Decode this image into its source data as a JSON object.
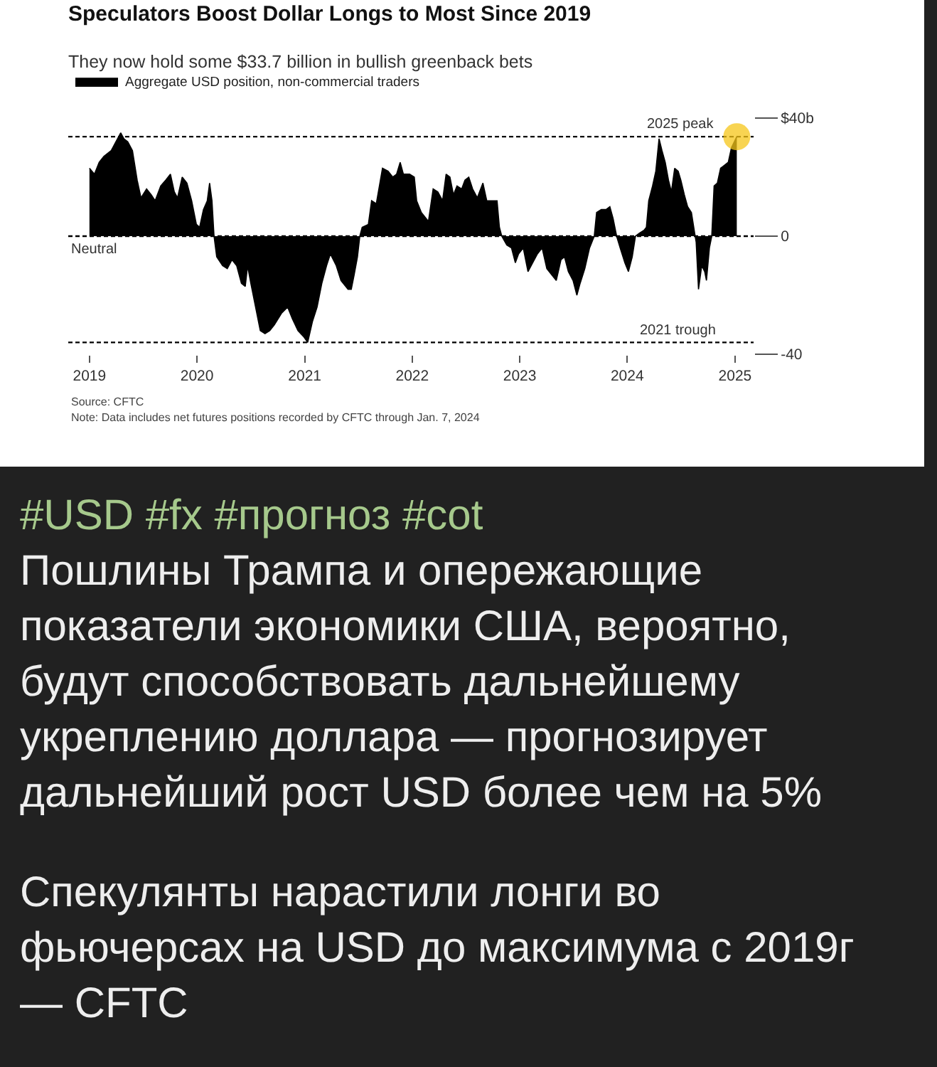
{
  "chart_data": {
    "type": "area",
    "title": "Speculators Boost Dollar Longs to Most Since 2019",
    "subtitle": "They now hold some $33.7 billion in bullish greenback bets",
    "series": [
      {
        "name": "Aggregate USD position, non-commercial traders",
        "color": "#000000",
        "x": [
          "2019-01-01",
          "2019-01-18",
          "2019-02-03",
          "2019-02-19",
          "2019-03-16",
          "2019-04-01",
          "2019-04-17",
          "2019-04-28",
          "2019-05-11",
          "2019-05-27",
          "2019-06-12",
          "2019-06-25",
          "2019-07-14",
          "2019-07-30",
          "2019-08-12",
          "2019-08-31",
          "2019-09-17",
          "2019-10-03",
          "2019-10-16",
          "2019-10-27",
          "2019-11-12",
          "2019-11-28",
          "2019-12-14",
          "2019-12-30",
          "2020-01-10",
          "2020-01-23",
          "2020-02-05",
          "2020-02-13",
          "2020-02-21",
          "2020-02-28",
          "2020-03-08",
          "2020-03-28",
          "2020-04-13",
          "2020-04-29",
          "2020-05-15",
          "2020-05-31",
          "2020-06-13",
          "2020-06-21",
          "2020-07-02",
          "2020-07-18",
          "2020-08-03",
          "2020-08-19",
          "2020-09-04",
          "2020-09-20",
          "2020-10-15",
          "2020-11-04",
          "2020-11-20",
          "2020-12-09",
          "2020-12-28",
          "2021-01-11",
          "2021-01-27",
          "2021-02-12",
          "2021-02-28",
          "2021-03-16",
          "2021-03-29",
          "2021-04-18",
          "2021-05-04",
          "2021-05-28",
          "2021-06-08",
          "2021-06-18",
          "2021-06-29",
          "2021-07-07",
          "2021-07-15",
          "2021-08-05",
          "2021-08-16",
          "2021-09-01",
          "2021-09-22",
          "2021-10-11",
          "2021-10-27",
          "2021-11-09",
          "2021-11-21",
          "2021-12-02",
          "2021-12-23",
          "2022-01-08",
          "2022-01-16",
          "2022-02-01",
          "2022-02-25",
          "2022-03-13",
          "2022-03-29",
          "2022-04-14",
          "2022-04-26",
          "2022-05-09",
          "2022-05-21",
          "2022-06-02",
          "2022-06-18",
          "2022-06-29",
          "2022-07-12",
          "2022-07-25",
          "2022-08-10",
          "2022-08-29",
          "2022-09-11",
          "2022-10-03",
          "2022-10-16",
          "2022-10-24",
          "2022-11-01",
          "2022-11-18",
          "2022-12-04",
          "2022-12-17",
          "2022-12-28",
          "2023-01-13",
          "2023-01-29",
          "2023-02-14",
          "2023-03-02",
          "2023-03-18",
          "2023-04-03",
          "2023-04-19",
          "2023-05-05",
          "2023-05-21",
          "2023-06-02",
          "2023-06-15",
          "2023-07-01",
          "2023-07-14",
          "2023-07-25",
          "2023-08-10",
          "2023-08-26",
          "2023-09-11",
          "2023-09-19",
          "2023-10-05",
          "2023-10-21",
          "2023-11-03",
          "2023-11-14",
          "2023-11-26",
          "2023-12-08",
          "2023-12-24",
          "2024-01-05",
          "2024-01-18",
          "2024-01-29",
          "2024-02-11",
          "2024-02-27",
          "2024-03-06",
          "2024-03-14",
          "2024-03-27",
          "2024-04-07",
          "2024-04-18",
          "2024-04-28",
          "2024-05-09",
          "2024-05-20",
          "2024-05-30",
          "2024-06-10",
          "2024-06-22",
          "2024-07-01",
          "2024-07-13",
          "2024-07-24",
          "2024-08-06",
          "2024-08-17",
          "2024-08-22",
          "2024-08-30",
          "2024-09-10",
          "2024-09-20",
          "2024-09-26",
          "2024-10-06",
          "2024-10-14",
          "2024-10-22",
          "2024-11-02",
          "2024-11-13",
          "2024-11-26",
          "2024-12-09",
          "2024-12-20",
          "2025-01-07"
        ],
        "values": [
          23,
          21,
          25,
          27,
          29,
          32,
          35,
          33,
          32,
          29,
          19,
          13,
          16,
          14,
          12,
          17,
          19,
          21,
          15,
          13,
          20,
          18,
          12,
          4,
          3,
          9,
          12,
          18,
          12,
          0,
          -7,
          -10,
          -11,
          -8,
          -10,
          -16,
          -17,
          -10,
          -16,
          -24,
          -32,
          -33,
          -32,
          -30,
          -26,
          -24,
          -28,
          -32,
          -34,
          -36,
          -29,
          -24,
          -16,
          -10,
          -6,
          -10,
          -15,
          -18,
          -18,
          -13,
          -7,
          0,
          3,
          4,
          12,
          11,
          23,
          22,
          20,
          21,
          25,
          21,
          21,
          20,
          12,
          8,
          5,
          16,
          15,
          12,
          21,
          20,
          14,
          17,
          16,
          19,
          20,
          16,
          13,
          18,
          12,
          12,
          12,
          3,
          0,
          -3,
          -4,
          -9,
          -6,
          -4,
          -12,
          -9,
          -6,
          -4,
          -11,
          -13,
          -15,
          -8,
          -7,
          -12,
          -15,
          -20,
          -16,
          -11,
          -4,
          0,
          8,
          9,
          9,
          10,
          6,
          0,
          -4,
          -9,
          -12,
          -7,
          0,
          1,
          2,
          3,
          12,
          17,
          22,
          33,
          29,
          25,
          19,
          15,
          23,
          22,
          19,
          14,
          10,
          8,
          1,
          -2,
          -18,
          -10,
          -12,
          -15,
          -4,
          0,
          17,
          18,
          23,
          24,
          25,
          30,
          33.7
        ]
      },
      {
        "type": "scatter",
        "color": "#f5c518",
        "marker": "circle",
        "x": [
          "2025-01-07"
        ],
        "values": [
          33.7
        ]
      }
    ],
    "xlim": [
      "2018-10-21",
      "2025-03-05"
    ],
    "xticks": [
      "2019",
      "2020",
      "2021",
      "2022",
      "2023",
      "2024",
      "2025"
    ],
    "ylim": [
      -40,
      40
    ],
    "yticks": [
      {
        "value": 40,
        "label": "$40b"
      },
      0,
      -40
    ],
    "ref_lines": [
      {
        "axis": "y",
        "value": 33.7,
        "label": "2025 peak",
        "line_style": "dashed",
        "color": "#000000"
      },
      {
        "axis": "y",
        "value": 0,
        "label": "Neutral",
        "line_style": "dashed",
        "color": "#000000"
      },
      {
        "axis": "y",
        "value": -36,
        "label": "2021 trough",
        "line_style": "dashed",
        "color": "#000000"
      }
    ],
    "grid": false,
    "legend": "top left",
    "annotations": [
      "Source: CFTC",
      "Note: Data includes net futures positions recorded by CFTC through Jan. 7, 2024",
      "#USD #fx #прогноз #cot",
      "Пошлины Трампа и опережающие показатели экономики США, вероятно, будут способствовать дальнейшему укреплению доллара — прогнозирует дальнейший рост USD более чем на 5%",
      "Спекулянты нарастили лонги во фьючерсах на USD до максимума с 2019г — CFTC"
    ]
  }
}
